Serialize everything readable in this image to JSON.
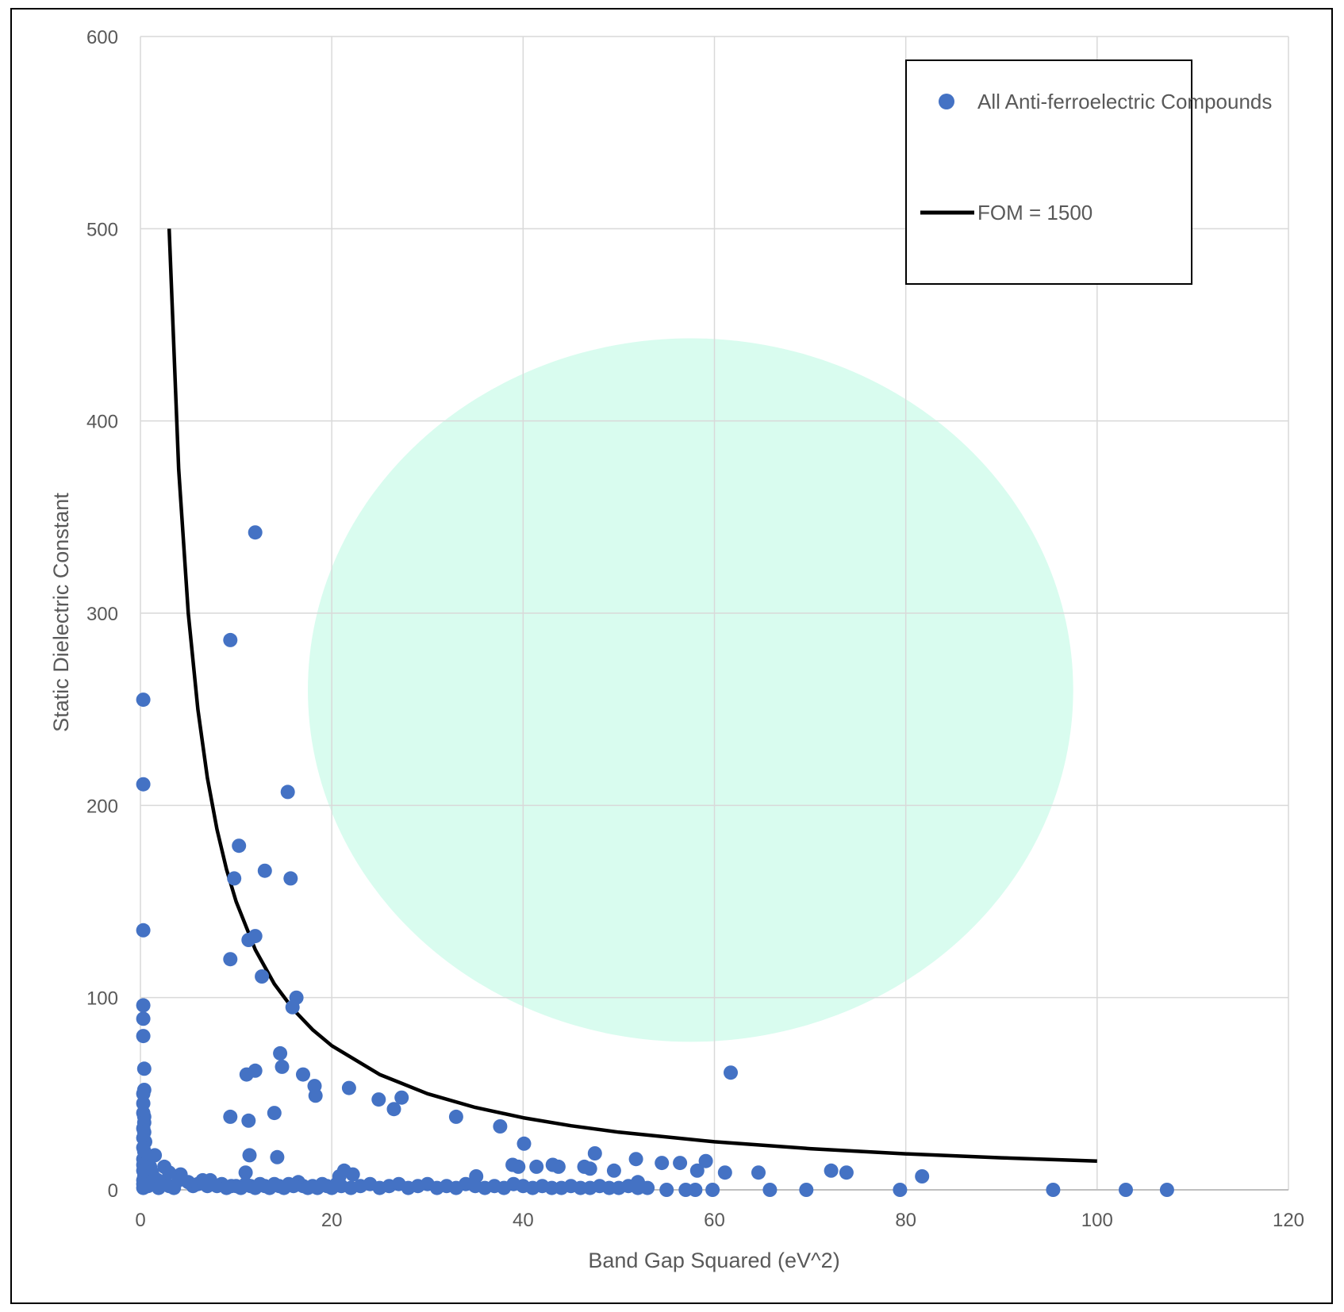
{
  "chart_data": {
    "type": "scatter",
    "xlabel": "Band Gap Squared (eV^2)",
    "ylabel": "Static Dielectric Constant",
    "xlim": [
      0,
      120
    ],
    "ylim": [
      0,
      600
    ],
    "x_ticks": [
      "0",
      "20",
      "40",
      "60",
      "80",
      "100",
      "120"
    ],
    "y_ticks": [
      "0",
      "100",
      "200",
      "300",
      "400",
      "500",
      "600"
    ],
    "grid": true,
    "legend_position": "top-right",
    "highlight_region": {
      "shape": "ellipse",
      "center": [
        57.5,
        260
      ],
      "radii": [
        40,
        183
      ],
      "color": "#d9fcef"
    },
    "series": [
      {
        "name": "All Anti-ferroelectric Compounds",
        "kind": "scatter",
        "color": "#4472c4",
        "points": [
          [
            0.3,
            255
          ],
          [
            0.3,
            211
          ],
          [
            0.3,
            135
          ],
          [
            0.3,
            96
          ],
          [
            0.3,
            89
          ],
          [
            0.3,
            80
          ],
          [
            0.4,
            63
          ],
          [
            0.4,
            52
          ],
          [
            0.3,
            50
          ],
          [
            0.3,
            45
          ],
          [
            0.3,
            40
          ],
          [
            0.4,
            38
          ],
          [
            0.4,
            35
          ],
          [
            0.3,
            32
          ],
          [
            0.4,
            30
          ],
          [
            0.3,
            27
          ],
          [
            0.5,
            25
          ],
          [
            0.3,
            22
          ],
          [
            0.4,
            20
          ],
          [
            0.6,
            18
          ],
          [
            0.3,
            16
          ],
          [
            0.8,
            15
          ],
          [
            0.3,
            13
          ],
          [
            0.5,
            12
          ],
          [
            1,
            12
          ],
          [
            0.3,
            10
          ],
          [
            0.7,
            9
          ],
          [
            1.2,
            9
          ],
          [
            0.4,
            7
          ],
          [
            0.9,
            7
          ],
          [
            1.5,
            6
          ],
          [
            0.3,
            5
          ],
          [
            1.8,
            5
          ],
          [
            0.6,
            4
          ],
          [
            1.1,
            4
          ],
          [
            2.2,
            4
          ],
          [
            0.3,
            3
          ],
          [
            1.4,
            3
          ],
          [
            2.6,
            3
          ],
          [
            0.8,
            2
          ],
          [
            3,
            2
          ],
          [
            0.3,
            1
          ],
          [
            1.9,
            1
          ],
          [
            3.5,
            1
          ],
          [
            1.5,
            18
          ],
          [
            2.5,
            12
          ],
          [
            3,
            9
          ],
          [
            4.2,
            8
          ],
          [
            4,
            5
          ],
          [
            5,
            4
          ],
          [
            5.5,
            2
          ],
          [
            6,
            3
          ],
          [
            6.5,
            5
          ],
          [
            7,
            2
          ],
          [
            7.3,
            5
          ],
          [
            8,
            2
          ],
          [
            8.5,
            3
          ],
          [
            9,
            1
          ],
          [
            9.5,
            2
          ],
          [
            10,
            2
          ],
          [
            10.5,
            1
          ],
          [
            11,
            3
          ],
          [
            11.5,
            2
          ],
          [
            12,
            1
          ],
          [
            12.5,
            3
          ],
          [
            13,
            2
          ],
          [
            13.5,
            1
          ],
          [
            14,
            3
          ],
          [
            14.5,
            2
          ],
          [
            15,
            1
          ],
          [
            15.5,
            3
          ],
          [
            16,
            2
          ],
          [
            16.5,
            4
          ],
          [
            17,
            2
          ],
          [
            17.5,
            1
          ],
          [
            18,
            2
          ],
          [
            18.5,
            1
          ],
          [
            19,
            3
          ],
          [
            19.5,
            2
          ],
          [
            20,
            1
          ],
          [
            20.5,
            3
          ],
          [
            21,
            2
          ],
          [
            22,
            1
          ],
          [
            23,
            2
          ],
          [
            24,
            3
          ],
          [
            25,
            1
          ],
          [
            26,
            2
          ],
          [
            27,
            3
          ],
          [
            28,
            1
          ],
          [
            29,
            2
          ],
          [
            30,
            3
          ],
          [
            31,
            1
          ],
          [
            32,
            2
          ],
          [
            33,
            1
          ],
          [
            34,
            3
          ],
          [
            35,
            2
          ],
          [
            36,
            1
          ],
          [
            37,
            2
          ],
          [
            38,
            1
          ],
          [
            39,
            3
          ],
          [
            40,
            2
          ],
          [
            41,
            1
          ],
          [
            42,
            2
          ],
          [
            43,
            1
          ],
          [
            44,
            1
          ],
          [
            45,
            2
          ],
          [
            46,
            1
          ],
          [
            47,
            1
          ],
          [
            48,
            2
          ],
          [
            49,
            1
          ],
          [
            50,
            1
          ],
          [
            51,
            2
          ],
          [
            52,
            1
          ],
          [
            53,
            1
          ],
          [
            12,
            342
          ],
          [
            9.4,
            286
          ],
          [
            15.4,
            207
          ],
          [
            10.3,
            179
          ],
          [
            9.8,
            162
          ],
          [
            13,
            166
          ],
          [
            15.7,
            162
          ],
          [
            12,
            132
          ],
          [
            11.3,
            130
          ],
          [
            9.4,
            120
          ],
          [
            12.7,
            111
          ],
          [
            16.3,
            100
          ],
          [
            15.9,
            95
          ],
          [
            14.6,
            71
          ],
          [
            14.8,
            64
          ],
          [
            17,
            60
          ],
          [
            11.1,
            60
          ],
          [
            12,
            62
          ],
          [
            18.2,
            54
          ],
          [
            18.3,
            49
          ],
          [
            21.8,
            53
          ],
          [
            24.9,
            47
          ],
          [
            27.3,
            48
          ],
          [
            26.5,
            42
          ],
          [
            14,
            40
          ],
          [
            9.4,
            38
          ],
          [
            11.3,
            36
          ],
          [
            33,
            38
          ],
          [
            37.6,
            33
          ],
          [
            40.1,
            24
          ],
          [
            11.4,
            18
          ],
          [
            14.3,
            17
          ],
          [
            38.9,
            13
          ],
          [
            39.5,
            12
          ],
          [
            41.4,
            12
          ],
          [
            43.1,
            13
          ],
          [
            43.7,
            12
          ],
          [
            46.4,
            12
          ],
          [
            47,
            11
          ],
          [
            47.5,
            19
          ],
          [
            49.5,
            10
          ],
          [
            51.8,
            16
          ],
          [
            54.5,
            14
          ],
          [
            56.4,
            14
          ],
          [
            58.2,
            10
          ],
          [
            59.1,
            15
          ],
          [
            61.1,
            9
          ],
          [
            64.6,
            9
          ],
          [
            72.2,
            10
          ],
          [
            73.8,
            9
          ],
          [
            81.7,
            7
          ],
          [
            61.7,
            61
          ],
          [
            11,
            9
          ],
          [
            20.8,
            7
          ],
          [
            21.3,
            10
          ],
          [
            22.2,
            8
          ],
          [
            35.1,
            7
          ],
          [
            52,
            4
          ],
          [
            57,
            0
          ],
          [
            59.8,
            0
          ],
          [
            65.8,
            0
          ],
          [
            69.6,
            0
          ],
          [
            79.4,
            0
          ],
          [
            95.4,
            0
          ],
          [
            103,
            0
          ],
          [
            107.3,
            0
          ],
          [
            55,
            0
          ],
          [
            58,
            0
          ]
        ]
      },
      {
        "name": "FOM = 1500",
        "kind": "line",
        "color": "#000000",
        "x": [
          3,
          4,
          5,
          6,
          7,
          8,
          9,
          10,
          12,
          14,
          16,
          18,
          20,
          25,
          30,
          35,
          40,
          45,
          50,
          60,
          70,
          80,
          90,
          100
        ],
        "y": [
          500,
          375,
          300,
          250,
          214.3,
          187.5,
          166.7,
          150,
          125,
          107.1,
          93.75,
          83.33,
          75,
          60,
          50,
          42.86,
          37.5,
          33.33,
          30,
          25,
          21.43,
          18.75,
          16.67,
          15
        ]
      }
    ]
  }
}
